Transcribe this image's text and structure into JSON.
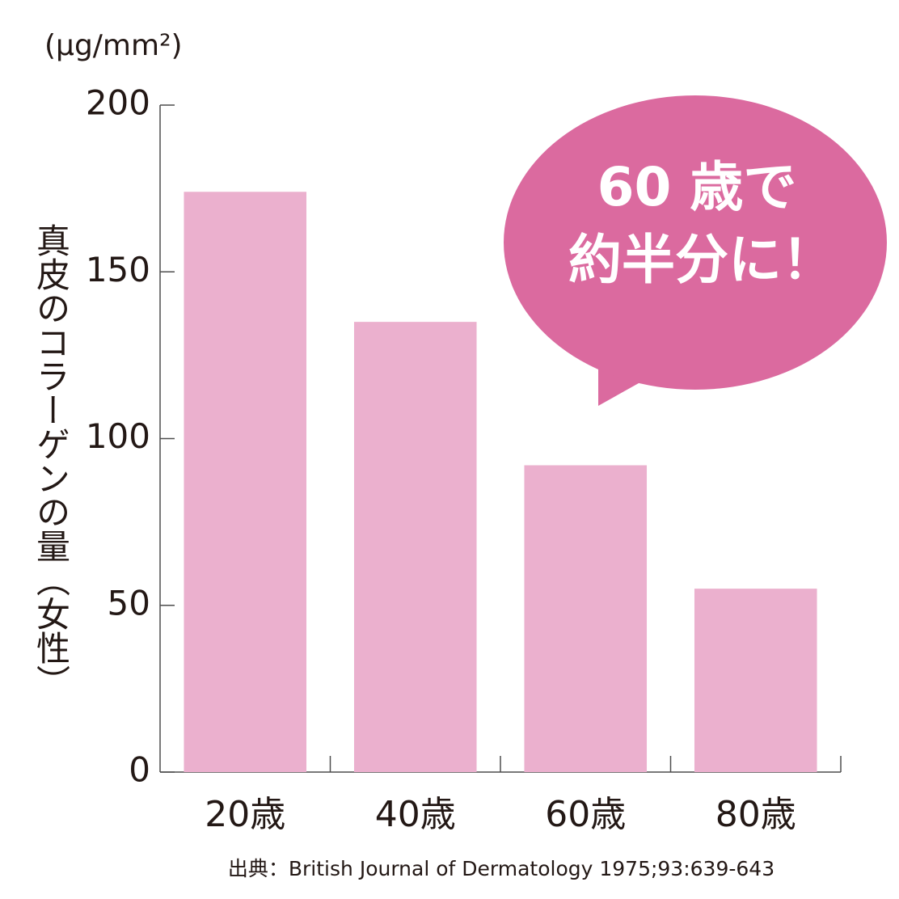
{
  "chart_data": {
    "type": "bar",
    "unit_label": "(μg/mm²)",
    "y_label": "真皮のコラーゲンの量（女性）",
    "categories": [
      "20歳",
      "40歳",
      "60歳",
      "80歳"
    ],
    "values": [
      174,
      135,
      92,
      55
    ],
    "color": "#ebb0ce",
    "ylim": [
      0,
      200
    ],
    "yticks": [
      0,
      50,
      100,
      150,
      200
    ],
    "grid": false,
    "annotation": [
      "60 歳で",
      "約半分に！"
    ],
    "source": "出典：British Journal of Dermatology 1975;93:639-643"
  }
}
